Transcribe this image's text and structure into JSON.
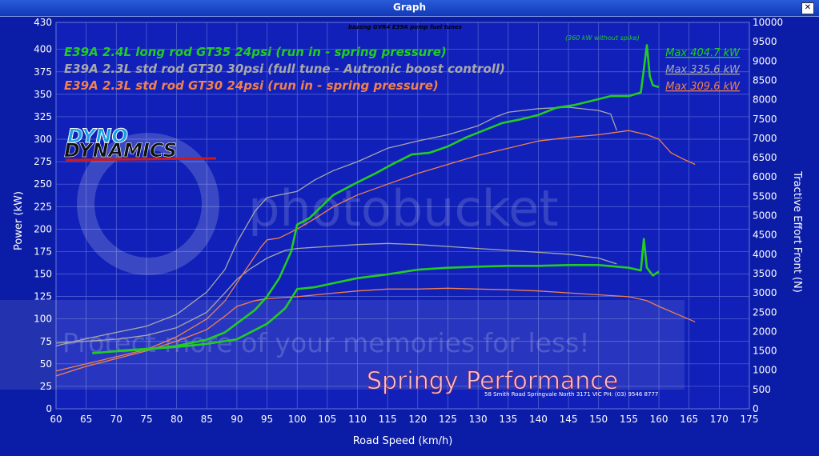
{
  "window": {
    "title": "Graph",
    "close_icon": "close-icon"
  },
  "chart_data": {
    "type": "line",
    "xlabel": "Road Speed (km/h)",
    "ylabel": "Power (kW)",
    "y2label": "Tractive Effort Front (N)",
    "xlim": [
      60,
      175
    ],
    "ylim": [
      0,
      430
    ],
    "y2lim": [
      0,
      10000
    ],
    "grid": true,
    "x_ticks": [
      "60",
      "65",
      "70",
      "75",
      "80",
      "85",
      "90",
      "95",
      "100",
      "105",
      "110",
      "115",
      "120",
      "125",
      "130",
      "135",
      "140",
      "145",
      "150",
      "155",
      "160",
      "165",
      "170",
      "175"
    ],
    "y_ticks": [
      "0",
      "25",
      "50",
      "75",
      "100",
      "125",
      "150",
      "175",
      "200",
      "225",
      "250",
      "275",
      "300",
      "325",
      "350",
      "375",
      "400",
      "430"
    ],
    "y2_ticks": [
      "0",
      "500",
      "1000",
      "1500",
      "2000",
      "2500",
      "3000",
      "3500",
      "4000",
      "4500",
      "5000",
      "5500",
      "6000",
      "6500",
      "7000",
      "7500",
      "8000",
      "8500",
      "9000",
      "9500",
      "10000"
    ],
    "annotation": "bazeng GVR4 E39A pump fuel tunes",
    "spike_note": "(360 kW without spike)",
    "legend_placement": "top-left",
    "series": [
      {
        "name": "E39A 2.4L long rod GT35 24psi (run in  - spring pressure)",
        "max_label": "Max 404.7 kW",
        "color": "#22cc22",
        "power": [
          [
            66,
            62
          ],
          [
            70,
            64
          ],
          [
            75,
            66
          ],
          [
            80,
            70
          ],
          [
            85,
            77
          ],
          [
            88,
            85
          ],
          [
            90,
            95
          ],
          [
            93,
            110
          ],
          [
            95,
            125
          ],
          [
            97,
            145
          ],
          [
            99,
            175
          ],
          [
            100,
            205
          ],
          [
            102,
            212
          ],
          [
            104,
            225
          ],
          [
            106,
            238
          ],
          [
            108,
            245
          ],
          [
            110,
            252
          ],
          [
            113,
            262
          ],
          [
            116,
            273
          ],
          [
            119,
            283
          ],
          [
            122,
            285
          ],
          [
            125,
            292
          ],
          [
            128,
            302
          ],
          [
            131,
            310
          ],
          [
            134,
            318
          ],
          [
            137,
            322
          ],
          [
            140,
            327
          ],
          [
            143,
            335
          ],
          [
            146,
            338
          ],
          [
            149,
            343
          ],
          [
            152,
            348
          ],
          [
            155,
            348
          ],
          [
            157,
            352
          ],
          [
            158,
            404.7
          ],
          [
            158.5,
            370
          ],
          [
            159,
            360
          ],
          [
            160,
            358
          ]
        ],
        "tractive": [
          [
            70,
            1500
          ],
          [
            75,
            1550
          ],
          [
            80,
            1600
          ],
          [
            85,
            1680
          ],
          [
            90,
            1800
          ],
          [
            95,
            2200
          ],
          [
            98,
            2600
          ],
          [
            100,
            3100
          ],
          [
            103,
            3150
          ],
          [
            106,
            3250
          ],
          [
            110,
            3380
          ],
          [
            115,
            3480
          ],
          [
            120,
            3600
          ],
          [
            125,
            3650
          ],
          [
            130,
            3680
          ],
          [
            135,
            3700
          ],
          [
            140,
            3700
          ],
          [
            145,
            3720
          ],
          [
            150,
            3720
          ],
          [
            155,
            3650
          ],
          [
            157,
            3580
          ],
          [
            157.5,
            4400
          ],
          [
            158,
            3650
          ],
          [
            159,
            3450
          ],
          [
            160,
            3550
          ]
        ]
      },
      {
        "name": "E39A 2.3L std rod GT30 30psi (full tune - Autronic boost controll)",
        "max_label": "Max 335.6 kW",
        "color": "#a8a8a8",
        "power": [
          [
            60,
            70
          ],
          [
            65,
            78
          ],
          [
            70,
            85
          ],
          [
            75,
            92
          ],
          [
            80,
            105
          ],
          [
            85,
            130
          ],
          [
            88,
            155
          ],
          [
            90,
            185
          ],
          [
            93,
            220
          ],
          [
            95,
            235
          ],
          [
            97,
            238
          ],
          [
            100,
            242
          ],
          [
            103,
            255
          ],
          [
            106,
            265
          ],
          [
            110,
            275
          ],
          [
            115,
            290
          ],
          [
            120,
            298
          ],
          [
            125,
            305
          ],
          [
            130,
            315
          ],
          [
            133,
            325
          ],
          [
            135,
            330
          ],
          [
            140,
            334
          ],
          [
            145,
            335.6
          ],
          [
            150,
            332
          ],
          [
            152,
            328
          ],
          [
            153,
            310
          ]
        ],
        "tractive": [
          [
            60,
            1700
          ],
          [
            65,
            1750
          ],
          [
            70,
            1800
          ],
          [
            75,
            1900
          ],
          [
            80,
            2100
          ],
          [
            85,
            2500
          ],
          [
            88,
            3000
          ],
          [
            90,
            3350
          ],
          [
            92,
            3600
          ],
          [
            95,
            3900
          ],
          [
            98,
            4100
          ],
          [
            100,
            4150
          ],
          [
            105,
            4200
          ],
          [
            110,
            4250
          ],
          [
            115,
            4280
          ],
          [
            120,
            4250
          ],
          [
            125,
            4200
          ],
          [
            130,
            4150
          ],
          [
            135,
            4100
          ],
          [
            140,
            4050
          ],
          [
            145,
            4000
          ],
          [
            150,
            3900
          ],
          [
            153,
            3750
          ]
        ]
      },
      {
        "name": "E39A 2.3L std rod GT30 24psi (run in  - spring pressure)",
        "max_label": "Max 309.6 kW",
        "color": "#f08050",
        "power": [
          [
            60,
            42
          ],
          [
            65,
            50
          ],
          [
            70,
            58
          ],
          [
            75,
            66
          ],
          [
            80,
            80
          ],
          [
            85,
            100
          ],
          [
            88,
            120
          ],
          [
            90,
            140
          ],
          [
            92,
            160
          ],
          [
            94,
            180
          ],
          [
            95,
            188
          ],
          [
            97,
            190
          ],
          [
            100,
            200
          ],
          [
            103,
            212
          ],
          [
            106,
            225
          ],
          [
            110,
            238
          ],
          [
            115,
            250
          ],
          [
            120,
            262
          ],
          [
            125,
            272
          ],
          [
            130,
            282
          ],
          [
            135,
            290
          ],
          [
            140,
            298
          ],
          [
            145,
            302
          ],
          [
            150,
            305
          ],
          [
            155,
            309.6
          ],
          [
            158,
            305
          ],
          [
            160,
            300
          ],
          [
            162,
            285
          ],
          [
            164,
            278
          ],
          [
            166,
            272
          ]
        ],
        "tractive": [
          [
            60,
            850
          ],
          [
            65,
            1100
          ],
          [
            70,
            1300
          ],
          [
            75,
            1500
          ],
          [
            80,
            1750
          ],
          [
            85,
            2050
          ],
          [
            88,
            2400
          ],
          [
            90,
            2650
          ],
          [
            93,
            2800
          ],
          [
            95,
            2850
          ],
          [
            98,
            2880
          ],
          [
            100,
            2900
          ],
          [
            105,
            2980
          ],
          [
            110,
            3050
          ],
          [
            115,
            3100
          ],
          [
            120,
            3100
          ],
          [
            125,
            3120
          ],
          [
            130,
            3100
          ],
          [
            135,
            3080
          ],
          [
            140,
            3050
          ],
          [
            145,
            3000
          ],
          [
            150,
            2950
          ],
          [
            155,
            2900
          ],
          [
            158,
            2800
          ],
          [
            160,
            2650
          ],
          [
            163,
            2450
          ],
          [
            166,
            2250
          ]
        ]
      }
    ]
  },
  "watermarks": {
    "top": "photobucket",
    "bottom": "Protect more of your memories for less!"
  },
  "brand": {
    "dyno_line1": "DYNO",
    "dyno_line2": "DYNAMICS",
    "shop": "Springy Performance",
    "address": "58 Smith Road Springvale North 3171 VIC    PH: (03) 9546 8777"
  }
}
